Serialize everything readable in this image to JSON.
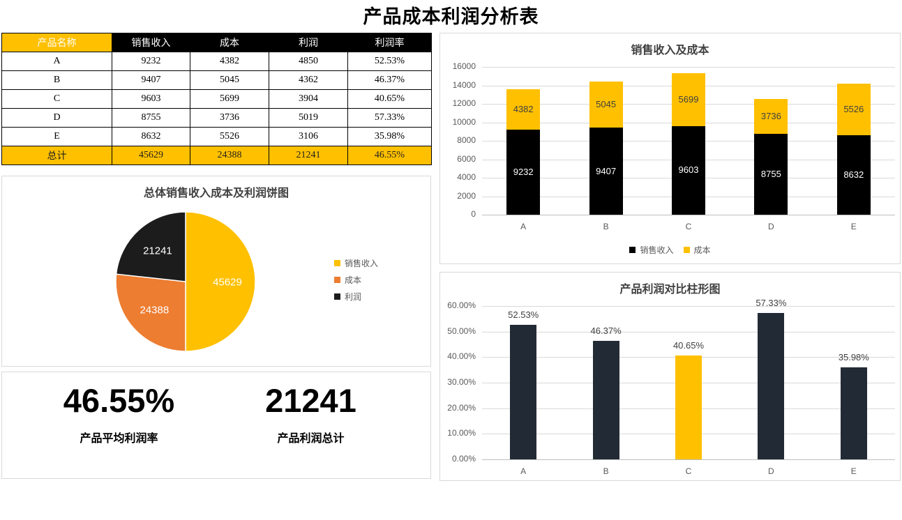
{
  "page_title": "产品成本利润分析表",
  "colors": {
    "gold": "#FFC000",
    "orange": "#ED7D31",
    "black": "#000000",
    "dark_navy": "#222B35",
    "grid": "#D9D9D9",
    "axis_line": "#BFBFBF",
    "axis_text": "#595959",
    "chart_title_text": "#404040",
    "header_text": "#FFFFFF"
  },
  "table": {
    "headers": [
      "产品名称",
      "销售收入",
      "成本",
      "利润",
      "利润率"
    ],
    "rows": [
      [
        "A",
        "9232",
        "4382",
        "4850",
        "52.53%"
      ],
      [
        "B",
        "9407",
        "5045",
        "4362",
        "46.37%"
      ],
      [
        "C",
        "9603",
        "5699",
        "3904",
        "40.65%"
      ],
      [
        "D",
        "8755",
        "3736",
        "5019",
        "57.33%"
      ],
      [
        "E",
        "8632",
        "5526",
        "3106",
        "35.98%"
      ]
    ],
    "total_row": [
      "总计",
      "45629",
      "24388",
      "21241",
      "46.55%"
    ]
  },
  "kpis": [
    {
      "value": "46.55%",
      "label": "产品平均利润率"
    },
    {
      "value": "21241",
      "label": "产品利润总计"
    }
  ],
  "chart_data": [
    {
      "id": "revenue_cost_stacked",
      "type": "bar",
      "stacked": true,
      "title": "销售收入及成本",
      "categories": [
        "A",
        "B",
        "C",
        "D",
        "E"
      ],
      "series": [
        {
          "name": "销售收入",
          "color": "#000000",
          "label_color": "#FFFFFF",
          "values": [
            9232,
            9407,
            9603,
            8755,
            8632
          ]
        },
        {
          "name": "成本",
          "color": "#FFC000",
          "label_color": "#404040",
          "values": [
            4382,
            5045,
            5699,
            3736,
            5526
          ]
        }
      ],
      "ylim": [
        0,
        16000
      ],
      "ytick_step": 2000,
      "grid": true,
      "legend_position": "bottom"
    },
    {
      "id": "totals_pie",
      "type": "pie",
      "title": "总体销售收入成本及利润饼图",
      "slices": [
        {
          "label": "销售收入",
          "value": 45629,
          "color": "#FFC000"
        },
        {
          "label": "成本",
          "value": 24388,
          "color": "#ED7D31"
        },
        {
          "label": "利润",
          "value": 21241,
          "color": "#1C1C1C"
        }
      ],
      "start_angle_deg": 0,
      "direction": "clockwise",
      "data_label_color": "#FFFFFF",
      "legend_position": "right"
    },
    {
      "id": "profit_rate_bar",
      "type": "bar",
      "stacked": false,
      "title": "产品利润对比柱形图",
      "categories": [
        "A",
        "B",
        "C",
        "D",
        "E"
      ],
      "values": [
        52.53,
        46.37,
        40.65,
        57.33,
        35.98
      ],
      "data_labels": [
        "52.53%",
        "46.37%",
        "40.65%",
        "57.33%",
        "35.98%"
      ],
      "bar_colors": [
        "#222B35",
        "#222B35",
        "#FFC000",
        "#222B35",
        "#222B35"
      ],
      "ylim": [
        0,
        60
      ],
      "ytick_step": 10,
      "ytick_suffix": "%",
      "ytick_decimals": 2,
      "grid": true
    }
  ]
}
